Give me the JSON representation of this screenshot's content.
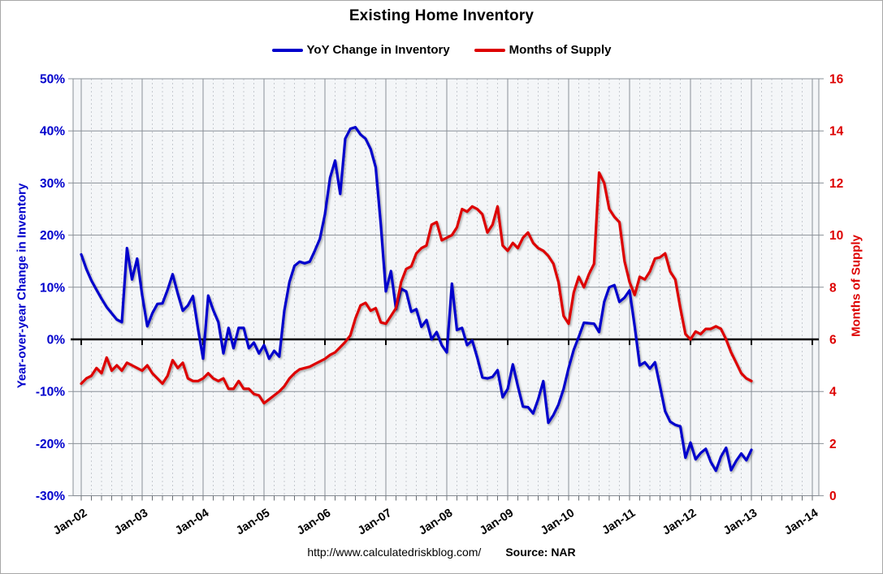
{
  "title": "Existing Home Inventory",
  "legend": {
    "items": [
      {
        "label": "YoY Change in Inventory",
        "color": "#0000CC"
      },
      {
        "label": "Months of Supply",
        "color": "#DD0000"
      }
    ]
  },
  "axes": {
    "left": {
      "title": "Year-over-year Change in Inventory",
      "color": "#0000CC",
      "tick_labels": [
        "50%",
        "40%",
        "30%",
        "20%",
        "10%",
        "0%",
        "-10%",
        "-20%",
        "-30%"
      ]
    },
    "right": {
      "title": "Months of Supply",
      "color": "#DD0000",
      "tick_labels": [
        "16",
        "14",
        "12",
        "10",
        "8",
        "6",
        "4",
        "2",
        "0"
      ]
    },
    "x": {
      "tick_labels": [
        "Jan-02",
        "Jan-03",
        "Jan-04",
        "Jan-05",
        "Jan-06",
        "Jan-07",
        "Jan-08",
        "Jan-09",
        "Jan-10",
        "Jan-11",
        "Jan-12",
        "Jan-13",
        "Jan-14"
      ]
    }
  },
  "footer": {
    "url": "http://www.calculatedriskblog.com/",
    "source": "Source: NAR"
  },
  "colors": {
    "grid": "#8a9097",
    "grid_minor": "#c6cad0",
    "plot_bg": "#f4f6f8",
    "zero_line": "#000000"
  },
  "chart_data": {
    "type": "line",
    "title": "Existing Home Inventory",
    "x_start": "Jan-2002",
    "x_frequency": "monthly",
    "x_axis_tick_labels": [
      "Jan-02",
      "Jan-03",
      "Jan-04",
      "Jan-05",
      "Jan-06",
      "Jan-07",
      "Jan-08",
      "Jan-09",
      "Jan-10",
      "Jan-11",
      "Jan-12",
      "Jan-13",
      "Jan-14"
    ],
    "y_left": {
      "label": "Year-over-year Change in Inventory",
      "min": -30,
      "max": 50,
      "tick_step": 10,
      "unit": "%"
    },
    "y_right": {
      "label": "Months of Supply",
      "min": 0,
      "max": 16,
      "tick_step": 2
    },
    "grid": true,
    "legend_position": "top",
    "series": [
      {
        "name": "YoY Change in Inventory",
        "axis": "left",
        "color": "#0000CC",
        "values": [
          16.3,
          13.5,
          11.3,
          9.5,
          7.8,
          6.2,
          5.0,
          3.8,
          3.3,
          17.5,
          11.5,
          15.5,
          8.5,
          2.5,
          5.0,
          6.8,
          6.9,
          9.5,
          12.5,
          8.8,
          5.5,
          6.5,
          8.3,
          2.0,
          -3.7,
          8.4,
          5.6,
          3.3,
          -2.7,
          2.2,
          -1.7,
          2.2,
          2.2,
          -1.7,
          -0.6,
          -2.7,
          -1.1,
          -3.7,
          -2.2,
          -3.3,
          5.5,
          11.0,
          14.1,
          14.9,
          14.6,
          14.9,
          17.0,
          19.3,
          24.0,
          31.0,
          34.3,
          27.9,
          38.5,
          40.4,
          40.7,
          39.3,
          38.5,
          36.5,
          33.0,
          22.0,
          9.2,
          13.1,
          5.8,
          9.7,
          9.2,
          5.3,
          5.8,
          2.4,
          3.7,
          0.0,
          1.4,
          -1.1,
          -2.5,
          10.7,
          1.8,
          2.2,
          -1.1,
          -0.2,
          -3.5,
          -7.3,
          -7.5,
          -7.2,
          -5.9,
          -11.1,
          -9.5,
          -4.8,
          -9.0,
          -12.9,
          -13.0,
          -14.2,
          -11.5,
          -8.0,
          -16.0,
          -14.5,
          -12.5,
          -9.5,
          -5.5,
          -2.0,
          0.5,
          3.2,
          3.1,
          3.0,
          1.4,
          7.2,
          10.0,
          10.4,
          7.2,
          8.0,
          9.4,
          2.5,
          -5.0,
          -4.4,
          -5.6,
          -4.4,
          -9.0,
          -13.8,
          -15.8,
          -16.4,
          -16.7,
          -22.7,
          -19.8,
          -23.0,
          -21.8,
          -21.0,
          -23.5,
          -25.2,
          -22.5,
          -20.8,
          -25.1,
          -23.3,
          -21.9,
          -23.2,
          -21.2
        ]
      },
      {
        "name": "Months of Supply",
        "axis": "right",
        "color": "#DD0000",
        "values": [
          4.3,
          4.5,
          4.6,
          4.9,
          4.7,
          5.3,
          4.8,
          5.0,
          4.8,
          5.1,
          5.0,
          4.9,
          4.8,
          5.0,
          4.7,
          4.5,
          4.3,
          4.6,
          5.2,
          4.9,
          5.1,
          4.5,
          4.4,
          4.4,
          4.5,
          4.7,
          4.5,
          4.4,
          4.5,
          4.1,
          4.1,
          4.4,
          4.1,
          4.1,
          3.9,
          3.85,
          3.55,
          3.7,
          3.85,
          4.0,
          4.2,
          4.5,
          4.7,
          4.85,
          4.9,
          4.95,
          5.05,
          5.15,
          5.25,
          5.4,
          5.5,
          5.7,
          5.9,
          6.15,
          6.8,
          7.3,
          7.4,
          7.1,
          7.2,
          6.65,
          6.6,
          6.9,
          7.2,
          8.2,
          8.7,
          8.8,
          9.3,
          9.5,
          9.6,
          10.4,
          10.5,
          9.8,
          9.9,
          10.0,
          10.3,
          11.0,
          10.9,
          11.1,
          11.0,
          10.8,
          10.1,
          10.4,
          11.1,
          9.6,
          9.4,
          9.7,
          9.5,
          9.9,
          10.1,
          9.7,
          9.5,
          9.4,
          9.2,
          8.9,
          8.2,
          6.9,
          6.6,
          7.8,
          8.4,
          8.0,
          8.5,
          8.9,
          12.4,
          12.0,
          11.0,
          10.7,
          10.5,
          9.0,
          8.2,
          7.7,
          8.4,
          8.3,
          8.6,
          9.1,
          9.15,
          9.3,
          8.6,
          8.3,
          7.2,
          6.2,
          6.0,
          6.3,
          6.2,
          6.4,
          6.4,
          6.5,
          6.4,
          6.0,
          5.5,
          5.1,
          4.7,
          4.5,
          4.4
        ]
      }
    ]
  }
}
